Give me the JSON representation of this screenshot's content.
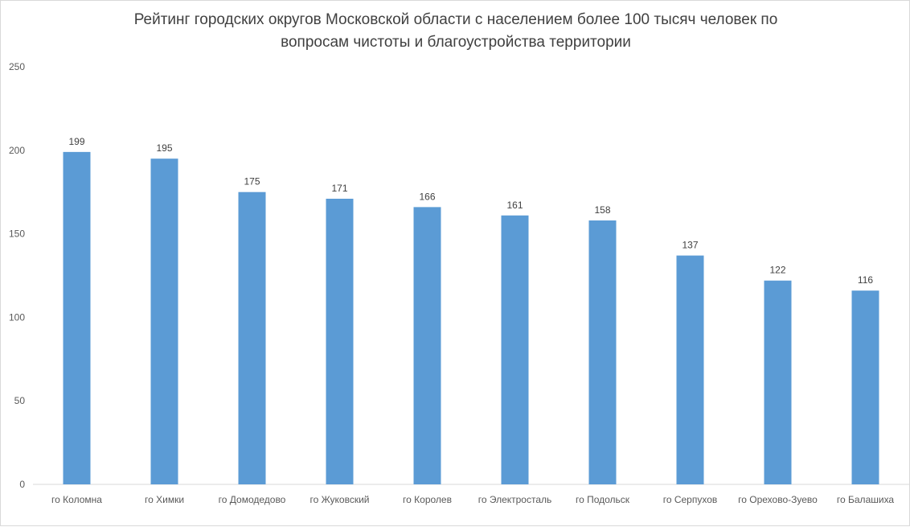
{
  "colors": {
    "bar": "#5b9bd5",
    "axis": "#d9d9d9",
    "text": "#595959"
  },
  "chart_data": {
    "type": "bar",
    "title_lines": [
      "Рейтинг городских округов Московской области с населением более 100 тысяч человек по",
      "вопросам чистоты и благоустройства территории"
    ],
    "categories": [
      "го Коломна",
      "го Химки",
      "го Домодедово",
      "го Жуковский",
      "го Королев",
      "го Электросталь",
      "го Подольск",
      "го Серпухов",
      "го Орехово-Зуево",
      "го Балашиха"
    ],
    "values": [
      199,
      195,
      175,
      171,
      166,
      161,
      158,
      137,
      122,
      116
    ],
    "y_ticks": [
      0,
      50,
      100,
      150,
      200,
      250
    ],
    "ylim": [
      0,
      250
    ],
    "xlabel": "",
    "ylabel": "",
    "grid": false,
    "legend": "none"
  }
}
